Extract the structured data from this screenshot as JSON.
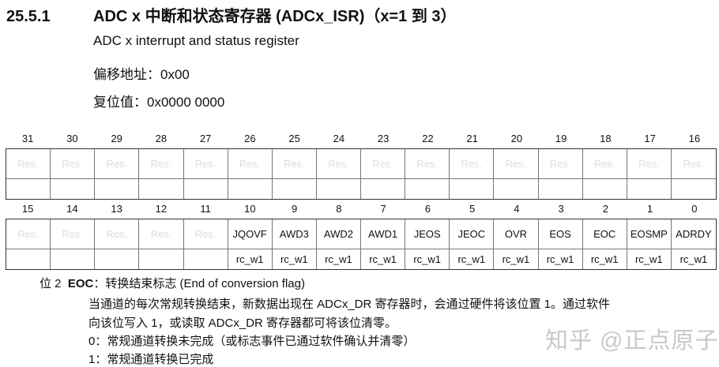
{
  "header": {
    "section": "25.5.1",
    "title": "ADC x 中断和状态寄存器 (ADCx_ISR)（x=1 到 3）",
    "subtitle": "ADC x interrupt and status register",
    "offset": "偏移地址：0x00",
    "reset": "复位值：0x0000 0000"
  },
  "register": {
    "upper": {
      "bits": [
        "31",
        "30",
        "29",
        "28",
        "27",
        "26",
        "25",
        "24",
        "23",
        "22",
        "21",
        "20",
        "19",
        "18",
        "17",
        "16"
      ],
      "names": [
        "Res.",
        "Res.",
        "Res.",
        "Res.",
        "Res.",
        "Res.",
        "Res.",
        "Res.",
        "Res.",
        "Res.",
        "Res.",
        "Res.",
        "Res.",
        "Res.",
        "Res.",
        "Res."
      ],
      "access": [
        "",
        "",
        "",
        "",
        "",
        "",
        "",
        "",
        "",
        "",
        "",
        "",
        "",
        "",
        "",
        ""
      ]
    },
    "lower": {
      "bits": [
        "15",
        "14",
        "13",
        "12",
        "11",
        "10",
        "9",
        "8",
        "7",
        "6",
        "5",
        "4",
        "3",
        "2",
        "1",
        "0"
      ],
      "names": [
        "Res.",
        "Res.",
        "Res.",
        "Res.",
        "Res.",
        "JQOVF",
        "AWD3",
        "AWD2",
        "AWD1",
        "JEOS",
        "JEOC",
        "OVR",
        "EOS",
        "EOC",
        "EOSMP",
        "ADRDY"
      ],
      "access": [
        "",
        "",
        "",
        "",
        "",
        "rc_w1",
        "rc_w1",
        "rc_w1",
        "rc_w1",
        "rc_w1",
        "rc_w1",
        "rc_w1",
        "rc_w1",
        "rc_w1",
        "rc_w1",
        "rc_w1"
      ]
    }
  },
  "description": {
    "bit_label": "位 2",
    "field": "EOC",
    "field_desc": "：转换结束标志 (End of conversion flag)",
    "lines": [
      "当通道的每次常规转换结束，新数据出现在 ADCx_DR 寄存器时，会通过硬件将该位置 1。通过软件",
      "向该位写入 1，或读取 ADCx_DR 寄存器都可将该位清零。",
      "0：常规通道转换未完成（或标志事件已通过软件确认并清零）",
      "1：常规通道转换已完成"
    ]
  },
  "watermark": "知乎 @正点原子"
}
